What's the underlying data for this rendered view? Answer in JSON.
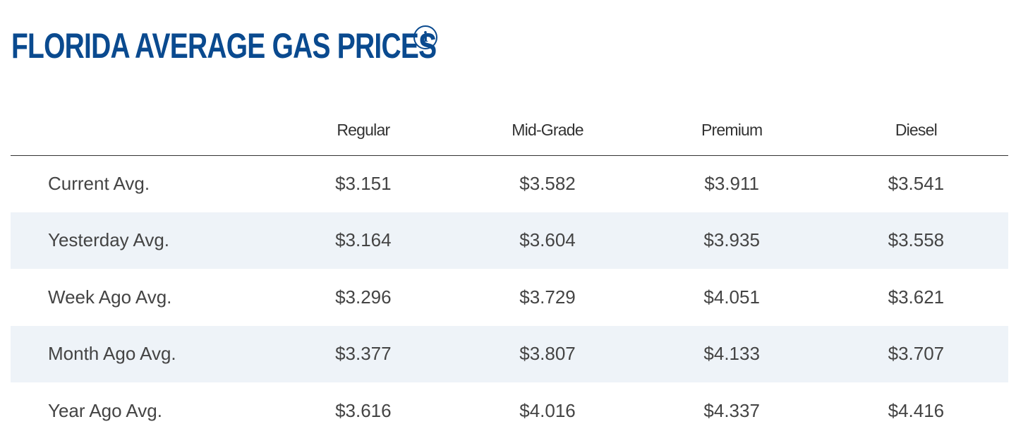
{
  "header": {
    "title": "FLORIDA AVERAGE GAS PRICES",
    "info_icon": "info-icon"
  },
  "table": {
    "columns": [
      "",
      "Regular",
      "Mid-Grade",
      "Premium",
      "Diesel"
    ],
    "rows": [
      {
        "label": "Current Avg.",
        "regular": "$3.151",
        "mid_grade": "$3.582",
        "premium": "$3.911",
        "diesel": "$3.541"
      },
      {
        "label": "Yesterday Avg.",
        "regular": "$3.164",
        "mid_grade": "$3.604",
        "premium": "$3.935",
        "diesel": "$3.558"
      },
      {
        "label": "Week Ago Avg.",
        "regular": "$3.296",
        "mid_grade": "$3.729",
        "premium": "$4.051",
        "diesel": "$3.621"
      },
      {
        "label": "Month Ago Avg.",
        "regular": "$3.377",
        "mid_grade": "$3.807",
        "premium": "$4.133",
        "diesel": "$3.707"
      },
      {
        "label": "Year Ago Avg.",
        "regular": "$3.616",
        "mid_grade": "$4.016",
        "premium": "$4.337",
        "diesel": "$4.416"
      }
    ]
  },
  "colors": {
    "title": "#0a4a8f",
    "stripe": "#eef3f8",
    "text": "#444444"
  }
}
